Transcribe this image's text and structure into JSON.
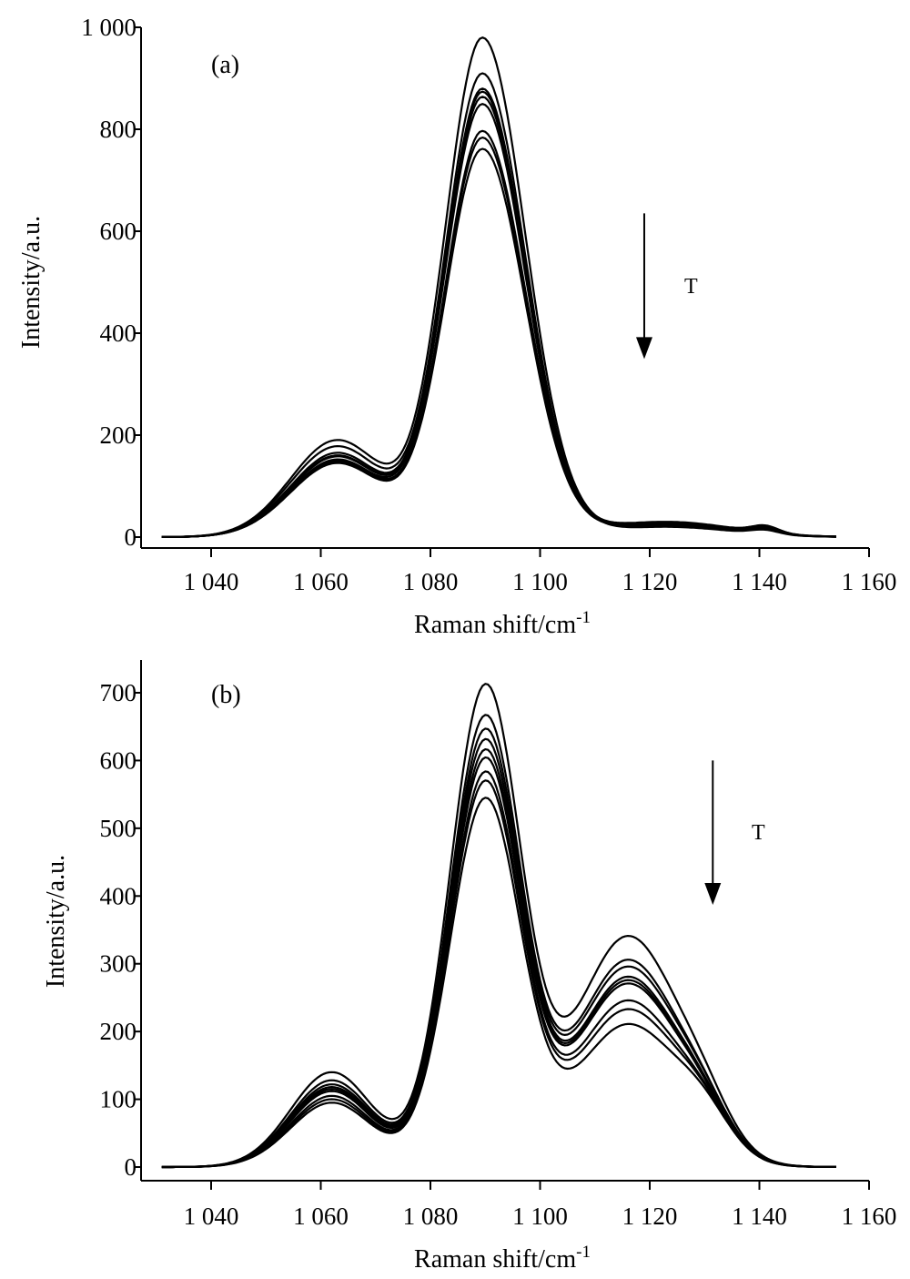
{
  "chart_data": [
    {
      "type": "line",
      "panel_label": "(a)",
      "xlabel": "Raman shift/cm",
      "xlabel_sup": "-1",
      "ylabel": "Intensity/a.u.",
      "xlim": [
        1031,
        1160
      ],
      "ylim": [
        0,
        1000
      ],
      "x_ticks": [
        1040,
        1060,
        1080,
        1100,
        1120,
        1140,
        1160
      ],
      "x_tick_labels": [
        "1 040",
        "1 060",
        "1 080",
        "1 100",
        "1 120",
        "1 140",
        "1 160"
      ],
      "y_ticks": [
        0,
        200,
        400,
        600,
        800,
        1000
      ],
      "y_tick_labels": [
        "0",
        "200",
        "400",
        "600",
        "800",
        "1 000"
      ],
      "annotation": "T",
      "arrow": {
        "x": 1119,
        "y_from": 635,
        "y_to": 360
      },
      "grid": false,
      "series_style": {
        "color": "#000000"
      },
      "peak_components": [
        {
          "center": 1063,
          "width": 8.5
        },
        {
          "center": 1089.5,
          "width_left": 6.8,
          "width_right": 7.8
        },
        {
          "center": 1123,
          "width": 12
        },
        {
          "center": 1141,
          "width": 2.5
        }
      ],
      "series": [
        {
          "values": [
            190,
            978,
            22,
            10
          ]
        },
        {
          "values": [
            178,
            908,
            20,
            8
          ]
        },
        {
          "values": [
            165,
            878,
            26,
            12
          ]
        },
        {
          "values": [
            160,
            872,
            24,
            9
          ]
        },
        {
          "values": [
            158,
            862,
            28,
            14
          ]
        },
        {
          "values": [
            152,
            848,
            22,
            11
          ]
        },
        {
          "values": [
            148,
            795,
            30,
            12
          ]
        },
        {
          "values": [
            150,
            782,
            26,
            10
          ]
        },
        {
          "values": [
            145,
            760,
            24,
            13
          ]
        }
      ]
    },
    {
      "type": "line",
      "panel_label": "(b)",
      "xlabel": "Raman shift/cm",
      "xlabel_sup": "-1",
      "ylabel": "Intensity/a.u.",
      "xlim": [
        1031,
        1160
      ],
      "ylim": [
        0,
        730
      ],
      "x_ticks": [
        1040,
        1060,
        1080,
        1100,
        1120,
        1140,
        1160
      ],
      "x_tick_labels": [
        "1 040",
        "1 060",
        "1 080",
        "1 100",
        "1 120",
        "1 140",
        "1 160"
      ],
      "y_ticks": [
        0,
        100,
        200,
        300,
        400,
        500,
        600,
        700
      ],
      "y_tick_labels": [
        "0",
        "100",
        "200",
        "300",
        "400",
        "500",
        "600",
        "700"
      ],
      "annotation": "T",
      "arrow": {
        "x": 1131.5,
        "y_from": 600,
        "y_to": 395
      },
      "grid": false,
      "series_style": {
        "color": "#000000"
      },
      "peak_components": [
        {
          "center": 1062,
          "width": 7.5
        },
        {
          "center": 1090,
          "width_left": 6.5,
          "width_right": 6.5
        },
        {
          "center": 1116,
          "width": 9.5
        },
        {
          "center": 1130,
          "width": 5
        }
      ],
      "series": [
        {
          "values": [
            140,
            705,
            340,
            45
          ]
        },
        {
          "values": [
            128,
            660,
            305,
            40
          ]
        },
        {
          "values": [
            122,
            640,
            295,
            42
          ]
        },
        {
          "values": [
            118,
            625,
            280,
            40
          ]
        },
        {
          "values": [
            115,
            610,
            275,
            38
          ]
        },
        {
          "values": [
            112,
            598,
            270,
            40
          ]
        },
        {
          "values": [
            105,
            578,
            245,
            42
          ]
        },
        {
          "values": [
            100,
            565,
            232,
            44
          ]
        },
        {
          "values": [
            95,
            540,
            210,
            46
          ]
        }
      ]
    }
  ]
}
